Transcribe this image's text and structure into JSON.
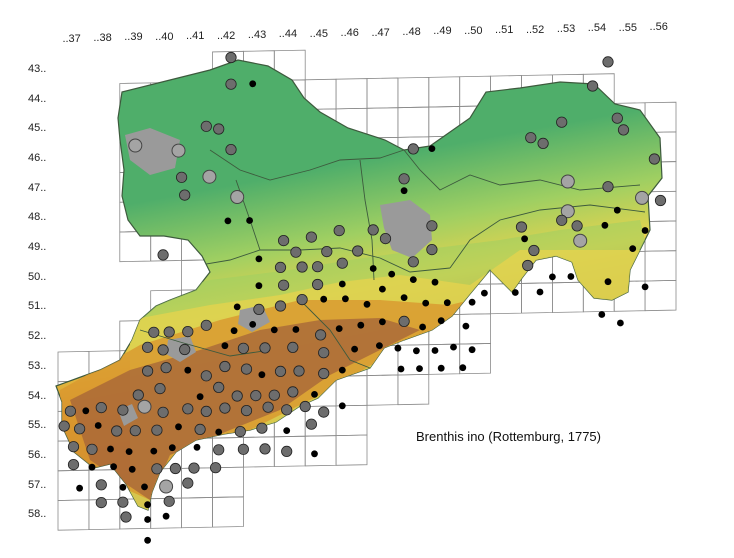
{
  "map": {
    "caption": "Brenthis ino (Rottemburg, 1775)",
    "column_labels": [
      "..37",
      "..38",
      "..39",
      "..40",
      "..41",
      "..42",
      "..43",
      "..44",
      "..45",
      "..46",
      "..47",
      "..48",
      "..49",
      "..50",
      "..51",
      "..52",
      "..53",
      "..54",
      "..55",
      "..56"
    ],
    "row_labels": [
      "43..",
      "44..",
      "45..",
      "46..",
      "47..",
      "48..",
      "49..",
      "50..",
      "51..",
      "52..",
      "53..",
      "54..",
      "55..",
      "56..",
      "57..",
      "58.."
    ],
    "terrain_colors": {
      "lowland": "#4fae6a",
      "low_hill": "#9fcf62",
      "hill": "#e7d34d",
      "upland": "#d9972e",
      "mountain": "#9c5a3a",
      "urban": "#9a9a9a",
      "grid_line": "#8a8a8a",
      "border": "#3d5a3d"
    },
    "record_symbols": {
      "large_light": "#a4a4a4",
      "medium_dark": "#6d6d6d",
      "small_black": "#000000"
    }
  }
}
